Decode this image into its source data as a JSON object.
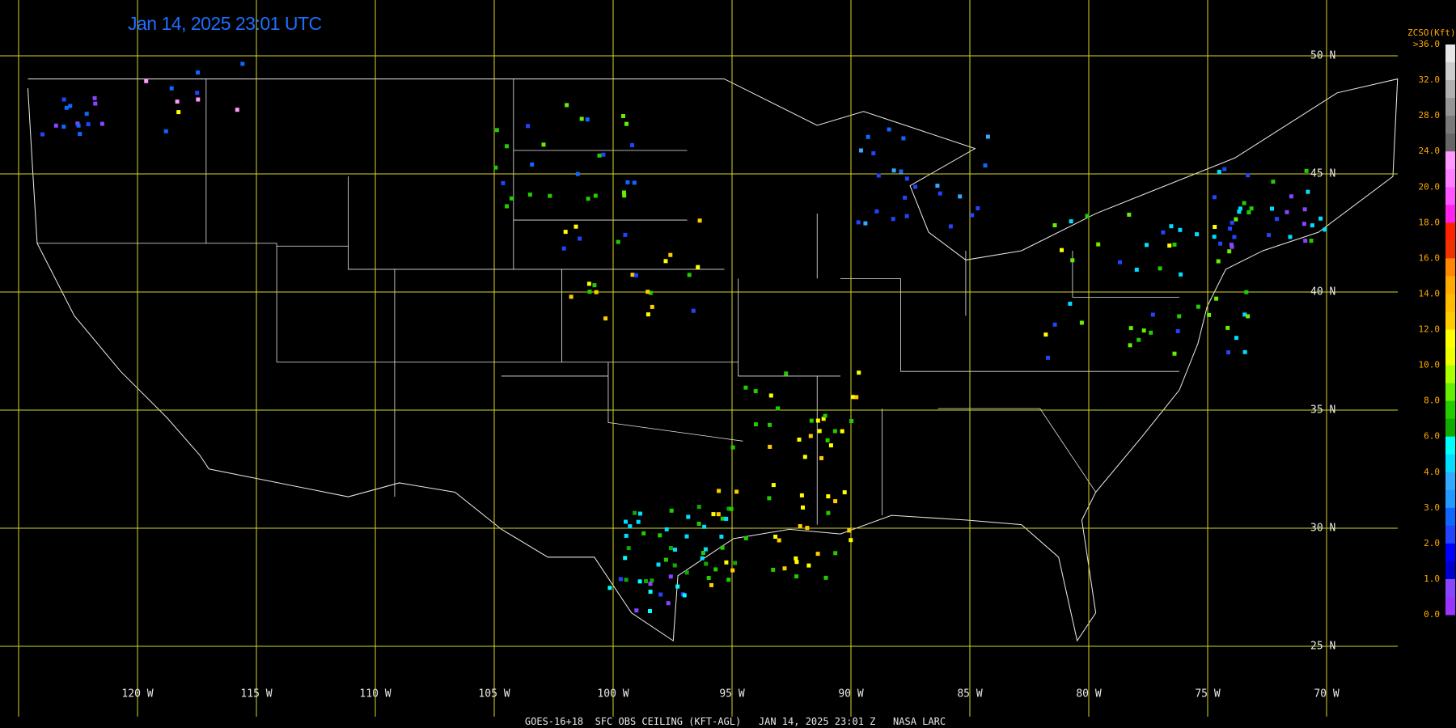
{
  "title": "Jan 14, 2025 23:01 UTC",
  "footer": "GOES-16+18  SFC OBS CEILING (KFT-AGL)   JAN 14, 2025 23:01 Z   NASA LARC",
  "longitude_labels": [
    "120 W",
    "115 W",
    "110 W",
    "105 W",
    "100 W",
    "95 W",
    "90 W",
    "85 W",
    "80 W",
    "75 W",
    "70 W"
  ],
  "latitude_labels": [
    "50 N",
    "45 N",
    "40 N",
    "35 N",
    "30 N",
    "25 N"
  ],
  "legend": {
    "title": "ZCSO(Kft)",
    "labels": [
      ">36.0",
      "32.0",
      "28.0",
      "24.0",
      "20.0",
      "18.0",
      "16.0",
      "14.0",
      "12.0",
      "10.0",
      "8.0",
      "6.0",
      "4.0",
      "3.0",
      "2.0",
      "1.0",
      "0.0"
    ],
    "colors": [
      "#e6e6e6",
      "#cccccc",
      "#b0b0b0",
      "#959595",
      "#7a7a7a",
      "#666666",
      "#ff99ff",
      "#ff80ff",
      "#ff55ff",
      "#ff22ee",
      "#ff2200",
      "#ee3300",
      "#ff8800",
      "#ffaa00",
      "#ffbb00",
      "#ffcc00",
      "#ffff00",
      "#eeff00",
      "#aaff00",
      "#66ee00",
      "#22cc00",
      "#11aa00",
      "#00ffff",
      "#00ddff",
      "#33aaff",
      "#2299ff",
      "#1166ff",
      "#2244ff",
      "#0000ff",
      "#0000cc",
      "#8844ff",
      "#9933ff"
    ]
  }
}
